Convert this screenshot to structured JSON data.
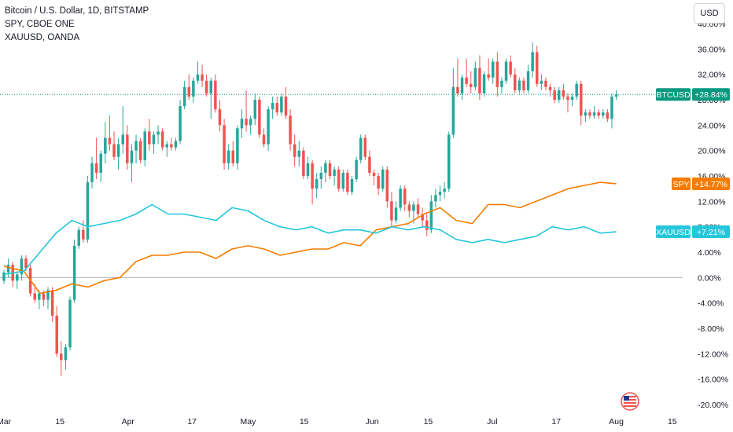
{
  "legend": {
    "main": "Bitcoin / U.S. Dollar, 1D, BITSTAMP",
    "compare1": "SPY, CBOE ONE",
    "compare2": "XAUUSD, OANDA"
  },
  "currency_button": "USD",
  "colors": {
    "up": "#26a69a",
    "down": "#ef5350",
    "spy": "#f57c00",
    "xau": "#26c6da",
    "btc_label": "#089981",
    "zero_line": "#b2b5be"
  },
  "chart_data": {
    "type": "line",
    "y_unit": "percent",
    "ylim": [
      -21,
      41
    ],
    "y_ticks": [
      "40.00%",
      "36.00%",
      "32.00%",
      "28.00%",
      "24.00%",
      "20.00%",
      "16.00%",
      "12.00%",
      "8.00%",
      "4.00%",
      "0.00%",
      "-4.00%",
      "-8.00%",
      "-12.00%",
      "-16.00%",
      "-20.00%"
    ],
    "y_tick_values": [
      40,
      36,
      32,
      28,
      24,
      20,
      16,
      12,
      8,
      4,
      0,
      -4,
      -8,
      -12,
      -16,
      -20
    ],
    "x_ticks": [
      {
        "label": "Mar",
        "day": 0
      },
      {
        "label": "15",
        "day": 14
      },
      {
        "label": "Apr",
        "day": 31
      },
      {
        "label": "17",
        "day": 47
      },
      {
        "label": "May",
        "day": 61
      },
      {
        "label": "15",
        "day": 75
      },
      {
        "label": "Jun",
        "day": 92
      },
      {
        "label": "15",
        "day": 106
      },
      {
        "label": "Jul",
        "day": 122
      },
      {
        "label": "17",
        "day": 138
      },
      {
        "label": "Aug",
        "day": 153
      },
      {
        "label": "15",
        "day": 167
      }
    ],
    "x_days": [
      0,
      169
    ],
    "grid": false,
    "price_labels": [
      {
        "name": "BTCUSD",
        "value": "+28.84%",
        "y": 28.84
      },
      {
        "name": "SPY",
        "value": "+14.77%",
        "y": 14.77
      },
      {
        "name": "XAUUSD",
        "value": "+7.21%",
        "y": 7.21
      }
    ],
    "series": [
      {
        "name": "BTCUSD",
        "type": "candlestick",
        "candles": [
          [
            -0.5,
            1.2,
            -1.0,
            0.8
          ],
          [
            0.8,
            3.0,
            0.0,
            2.0
          ],
          [
            2.0,
            2.5,
            -1.5,
            -0.5
          ],
          [
            -0.5,
            1.0,
            -1.8,
            0.5
          ],
          [
            0.5,
            3.5,
            -0.5,
            3.0
          ],
          [
            3.0,
            3.5,
            1.0,
            1.5
          ],
          [
            1.5,
            2.0,
            -3.0,
            -2.5
          ],
          [
            -2.5,
            -1.0,
            -4.0,
            -3.5
          ],
          [
            -3.5,
            -2.0,
            -5.0,
            -2.5
          ],
          [
            -2.5,
            -2.0,
            -4.5,
            -3.5
          ],
          [
            -3.5,
            -1.5,
            -5.0,
            -2.0
          ],
          [
            -2.0,
            -1.5,
            -7.0,
            -6.0
          ],
          [
            -6.0,
            -4.5,
            -12.5,
            -12.0
          ],
          [
            -12.0,
            -10.0,
            -15.5,
            -13.0
          ],
          [
            -13.0,
            -10.5,
            -14.5,
            -11.0
          ],
          [
            -11.0,
            -3.0,
            -11.5,
            -3.5
          ],
          [
            -3.5,
            6.0,
            -4.0,
            5.0
          ],
          [
            5.0,
            8.0,
            4.5,
            7.5
          ],
          [
            7.5,
            9.0,
            5.5,
            6.0
          ],
          [
            6.0,
            16.0,
            5.5,
            15.0
          ],
          [
            15.0,
            19.0,
            14.0,
            18.0
          ],
          [
            18.0,
            22.0,
            15.5,
            16.5
          ],
          [
            16.5,
            20.0,
            15.0,
            19.5
          ],
          [
            19.5,
            24.5,
            18.0,
            22.0
          ],
          [
            22.0,
            25.5,
            20.0,
            21.0
          ],
          [
            21.0,
            23.0,
            18.5,
            19.0
          ],
          [
            19.0,
            22.0,
            17.0,
            21.0
          ],
          [
            21.0,
            27.0,
            19.5,
            22.5
          ],
          [
            22.5,
            24.0,
            17.0,
            18.0
          ],
          [
            18.0,
            21.0,
            15.0,
            20.0
          ],
          [
            20.0,
            22.5,
            18.0,
            21.5
          ],
          [
            21.5,
            22.0,
            18.0,
            18.5
          ],
          [
            18.5,
            23.5,
            17.5,
            23.0
          ],
          [
            23.0,
            25.0,
            20.0,
            21.0
          ],
          [
            21.0,
            23.0,
            19.5,
            22.5
          ],
          [
            22.5,
            24.0,
            21.0,
            23.0
          ],
          [
            23.0,
            23.5,
            20.0,
            20.5
          ],
          [
            20.5,
            21.5,
            19.0,
            21.0
          ],
          [
            21.0,
            22.0,
            20.0,
            20.5
          ],
          [
            20.5,
            22.0,
            20.0,
            21.5
          ],
          [
            21.5,
            28.0,
            21.0,
            27.0
          ],
          [
            27.0,
            31.0,
            26.5,
            30.0
          ],
          [
            30.0,
            32.0,
            28.0,
            28.5
          ],
          [
            28.5,
            31.5,
            27.5,
            31.0
          ],
          [
            31.0,
            34.0,
            30.5,
            32.0
          ],
          [
            32.0,
            33.5,
            30.0,
            31.0
          ],
          [
            31.0,
            32.0,
            28.5,
            29.0
          ],
          [
            29.0,
            31.5,
            25.0,
            31.0
          ],
          [
            31.0,
            32.0,
            26.0,
            26.5
          ],
          [
            26.5,
            28.0,
            23.0,
            24.0
          ],
          [
            24.0,
            25.0,
            17.0,
            18.0
          ],
          [
            18.0,
            21.0,
            17.0,
            20.0
          ],
          [
            20.0,
            21.5,
            17.5,
            18.0
          ],
          [
            18.0,
            24.0,
            17.0,
            23.5
          ],
          [
            23.5,
            26.5,
            22.0,
            25.0
          ],
          [
            25.0,
            29.5,
            23.0,
            24.0
          ],
          [
            24.0,
            25.5,
            22.5,
            25.0
          ],
          [
            25.0,
            29.0,
            24.0,
            28.0
          ],
          [
            28.0,
            28.5,
            22.0,
            22.5
          ],
          [
            22.5,
            23.5,
            20.5,
            21.0
          ],
          [
            21.0,
            27.0,
            20.0,
            26.5
          ],
          [
            26.5,
            28.5,
            25.0,
            27.5
          ],
          [
            27.5,
            28.5,
            25.5,
            26.0
          ],
          [
            26.0,
            29.0,
            25.5,
            28.5
          ],
          [
            28.5,
            30.0,
            25.0,
            25.5
          ],
          [
            25.5,
            26.5,
            20.0,
            21.0
          ],
          [
            21.0,
            22.5,
            17.5,
            19.0
          ],
          [
            19.0,
            21.5,
            17.5,
            20.0
          ],
          [
            20.0,
            20.5,
            15.5,
            16.0
          ],
          [
            16.0,
            19.0,
            15.5,
            18.0
          ],
          [
            18.0,
            18.5,
            11.5,
            14.0
          ],
          [
            14.0,
            16.5,
            12.5,
            15.5
          ],
          [
            15.5,
            17.5,
            14.0,
            16.5
          ],
          [
            16.5,
            18.5,
            15.0,
            18.0
          ],
          [
            18.0,
            18.5,
            15.5,
            16.0
          ],
          [
            16.0,
            17.5,
            14.5,
            17.0
          ],
          [
            17.0,
            17.5,
            13.5,
            14.0
          ],
          [
            14.0,
            17.0,
            13.5,
            16.5
          ],
          [
            16.5,
            17.0,
            13.0,
            13.5
          ],
          [
            13.5,
            16.0,
            13.0,
            15.5
          ],
          [
            15.5,
            19.0,
            15.0,
            18.5
          ],
          [
            18.5,
            22.5,
            18.0,
            22.0
          ],
          [
            22.0,
            22.5,
            18.5,
            19.0
          ],
          [
            19.0,
            20.0,
            16.0,
            16.5
          ],
          [
            16.5,
            17.0,
            14.5,
            16.0
          ],
          [
            16.0,
            16.5,
            13.0,
            14.0
          ],
          [
            14.0,
            17.5,
            13.5,
            17.0
          ],
          [
            17.0,
            17.5,
            11.0,
            12.0
          ],
          [
            12.0,
            13.5,
            8.0,
            9.0
          ],
          [
            9.0,
            12.0,
            8.5,
            11.0
          ],
          [
            11.0,
            14.5,
            10.5,
            14.0
          ],
          [
            14.0,
            14.5,
            10.5,
            11.5
          ],
          [
            11.5,
            12.0,
            9.5,
            10.5
          ],
          [
            10.5,
            12.0,
            8.5,
            11.5
          ],
          [
            11.5,
            12.5,
            9.5,
            10.0
          ],
          [
            10.0,
            11.0,
            8.0,
            9.0
          ],
          [
            9.0,
            10.0,
            6.5,
            7.5
          ],
          [
            7.5,
            13.0,
            7.0,
            12.0
          ],
          [
            12.0,
            14.0,
            11.0,
            13.0
          ],
          [
            13.0,
            14.5,
            12.0,
            13.5
          ],
          [
            13.5,
            15.0,
            12.5,
            14.0
          ],
          [
            14.0,
            23.0,
            13.5,
            22.5
          ],
          [
            22.5,
            33.0,
            22.0,
            30.0
          ],
          [
            30.0,
            34.5,
            28.5,
            29.0
          ],
          [
            29.0,
            32.0,
            28.0,
            31.5
          ],
          [
            31.5,
            34.5,
            30.0,
            30.5
          ],
          [
            30.5,
            32.5,
            29.0,
            30.0
          ],
          [
            30.0,
            34.0,
            29.5,
            33.0
          ],
          [
            33.0,
            35.0,
            28.0,
            29.0
          ],
          [
            29.0,
            32.5,
            28.5,
            32.0
          ],
          [
            32.0,
            34.5,
            31.0,
            31.5
          ],
          [
            31.5,
            34.5,
            30.5,
            34.0
          ],
          [
            34.0,
            35.5,
            28.5,
            30.0
          ],
          [
            30.0,
            31.5,
            29.0,
            31.0
          ],
          [
            31.0,
            34.5,
            30.5,
            34.0
          ],
          [
            34.0,
            35.0,
            31.5,
            32.0
          ],
          [
            32.0,
            33.0,
            29.0,
            29.5
          ],
          [
            29.5,
            31.5,
            29.0,
            31.0
          ],
          [
            31.0,
            31.5,
            29.0,
            29.5
          ],
          [
            29.5,
            33.5,
            29.0,
            32.5
          ],
          [
            32.5,
            37.0,
            31.5,
            35.5
          ],
          [
            35.5,
            36.5,
            30.0,
            30.5
          ],
          [
            30.5,
            32.0,
            29.5,
            31.0
          ],
          [
            31.0,
            31.5,
            29.5,
            30.0
          ],
          [
            30.0,
            30.5,
            28.5,
            29.5
          ],
          [
            29.5,
            30.0,
            27.5,
            28.0
          ],
          [
            28.0,
            30.0,
            27.5,
            29.5
          ],
          [
            29.5,
            30.5,
            28.0,
            28.5
          ],
          [
            28.5,
            29.0,
            26.0,
            28.0
          ],
          [
            28.0,
            29.0,
            27.0,
            28.5
          ],
          [
            28.5,
            31.0,
            28.0,
            30.5
          ],
          [
            30.5,
            31.0,
            24.0,
            25.5
          ],
          [
            25.5,
            26.5,
            24.5,
            26.0
          ],
          [
            26.0,
            26.5,
            25.0,
            25.5
          ],
          [
            25.5,
            27.0,
            25.0,
            26.0
          ],
          [
            26.0,
            26.5,
            25.0,
            25.5
          ],
          [
            25.5,
            26.5,
            25.0,
            26.0
          ],
          [
            26.0,
            26.5,
            24.5,
            25.0
          ],
          [
            25.0,
            29.0,
            23.5,
            28.5
          ],
          [
            28.5,
            29.5,
            28.0,
            28.84
          ]
        ]
      },
      {
        "name": "SPY",
        "type": "line",
        "color": "#f57c00",
        "days": [
          0,
          5,
          9,
          13,
          17,
          21,
          25,
          29,
          33,
          37,
          41,
          45,
          49,
          53,
          57,
          61,
          65,
          69,
          73,
          77,
          81,
          85,
          89,
          93,
          97,
          101,
          105,
          109,
          113,
          117,
          121,
          125,
          129,
          133,
          137,
          141,
          145,
          149,
          153
        ],
        "values": [
          1.8,
          1.0,
          -2.5,
          -2.0,
          -1.0,
          -1.5,
          -0.5,
          0.0,
          2.5,
          3.5,
          3.5,
          4.0,
          4.0,
          3.0,
          4.5,
          5.0,
          4.5,
          3.5,
          4.0,
          4.5,
          4.5,
          5.5,
          5.0,
          7.5,
          8.0,
          8.5,
          10.0,
          11.0,
          9.0,
          8.5,
          11.5,
          11.5,
          11.0,
          12.0,
          13.0,
          14.0,
          14.5,
          15.0,
          14.77
        ]
      },
      {
        "name": "XAUUSD",
        "type": "line",
        "color": "#26c6da",
        "days": [
          0,
          5,
          9,
          13,
          17,
          21,
          25,
          29,
          33,
          37,
          41,
          45,
          49,
          53,
          57,
          61,
          65,
          69,
          73,
          77,
          81,
          85,
          89,
          93,
          97,
          101,
          105,
          109,
          113,
          117,
          121,
          125,
          129,
          133,
          137,
          141,
          145,
          149,
          153
        ],
        "values": [
          0.5,
          1.0,
          4.0,
          7.0,
          9.0,
          8.0,
          8.5,
          9.0,
          10.0,
          11.5,
          10.0,
          10.0,
          9.5,
          9.0,
          11.0,
          10.5,
          9.0,
          8.0,
          7.5,
          8.0,
          7.0,
          7.5,
          7.5,
          7.0,
          8.0,
          7.5,
          8.0,
          7.5,
          6.0,
          5.5,
          6.0,
          5.5,
          6.0,
          6.5,
          8.0,
          7.5,
          8.0,
          7.0,
          7.21
        ]
      }
    ]
  }
}
